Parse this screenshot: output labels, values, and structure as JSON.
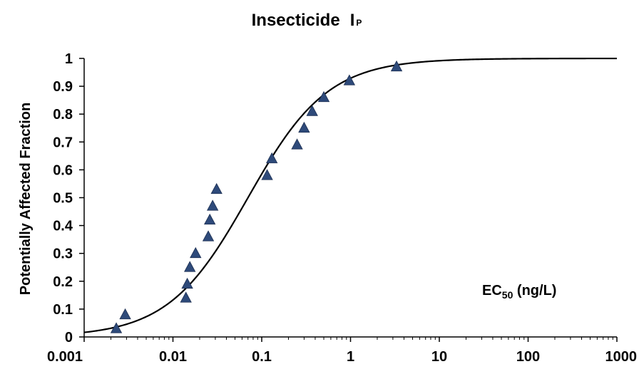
{
  "chart_data": {
    "type": "scatter",
    "title": "Insecticide",
    "title_symbol": "I",
    "title_symbol_sub": "P",
    "ylabel": "Potentially Affected Fraction",
    "annotation_main": "EC",
    "annotation_sub": "50",
    "annotation_units": " (ng/L)",
    "xscale": "log",
    "xlim": [
      0.001,
      1000
    ],
    "ylim": [
      0,
      1
    ],
    "x_ticks": [
      {
        "value": 0.001,
        "label": "0.001"
      },
      {
        "value": 0.01,
        "label": "0.01"
      },
      {
        "value": 0.1,
        "label": "0.1"
      },
      {
        "value": 1,
        "label": "1"
      },
      {
        "value": 10,
        "label": "10"
      },
      {
        "value": 100,
        "label": "100"
      },
      {
        "value": 1000,
        "label": "1000"
      }
    ],
    "y_ticks": [
      {
        "value": 0,
        "label": "0"
      },
      {
        "value": 0.1,
        "label": "0.1"
      },
      {
        "value": 0.2,
        "label": "0.2"
      },
      {
        "value": 0.3,
        "label": "0.3"
      },
      {
        "value": 0.4,
        "label": "0.4"
      },
      {
        "value": 0.5,
        "label": "0.5"
      },
      {
        "value": 0.6,
        "label": "0.6"
      },
      {
        "value": 0.7,
        "label": "0.7"
      },
      {
        "value": 0.8,
        "label": "0.8"
      },
      {
        "value": 0.9,
        "label": "0.9"
      },
      {
        "value": 1,
        "label": "1"
      }
    ],
    "grid": false,
    "legend": "none",
    "marker": "triangle",
    "marker_color": "#2E4A7A",
    "curve_color": "#000000",
    "points": [
      {
        "x": 0.0023,
        "y": 0.03
      },
      {
        "x": 0.0029,
        "y": 0.08
      },
      {
        "x": 0.014,
        "y": 0.14
      },
      {
        "x": 0.0145,
        "y": 0.19
      },
      {
        "x": 0.0155,
        "y": 0.25
      },
      {
        "x": 0.018,
        "y": 0.3
      },
      {
        "x": 0.025,
        "y": 0.36
      },
      {
        "x": 0.026,
        "y": 0.42
      },
      {
        "x": 0.028,
        "y": 0.47
      },
      {
        "x": 0.031,
        "y": 0.53
      },
      {
        "x": 0.115,
        "y": 0.58
      },
      {
        "x": 0.13,
        "y": 0.64
      },
      {
        "x": 0.25,
        "y": 0.69
      },
      {
        "x": 0.3,
        "y": 0.75
      },
      {
        "x": 0.37,
        "y": 0.81
      },
      {
        "x": 0.5,
        "y": 0.86
      },
      {
        "x": 0.97,
        "y": 0.92
      },
      {
        "x": 3.3,
        "y": 0.97
      }
    ],
    "fit_curve": {
      "type": "log-logistic",
      "midpoint_x": 0.07,
      "log10_slope": 0.45
    }
  }
}
